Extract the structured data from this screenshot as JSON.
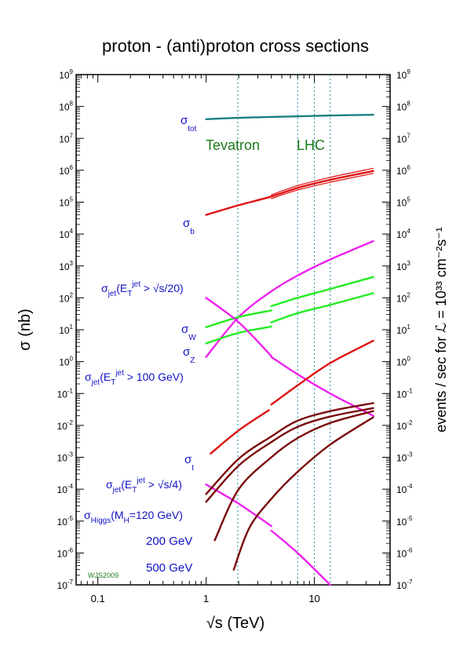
{
  "chart_data": {
    "type": "line",
    "title": "proton - (anti)proton cross sections",
    "xlabel": "√s (TeV)",
    "ylabel_left": "σ (nb)",
    "ylabel_right": "events / sec for ℒ = 10³³ cm⁻²s⁻¹",
    "x_scale": "log",
    "y_scale": "log",
    "xlim": [
      0.063,
      50
    ],
    "ylim": [
      1e-07,
      1000000000.0
    ],
    "x_ticks": [
      {
        "label": "0.1",
        "value": 0.1
      },
      {
        "label": "1",
        "value": 1
      },
      {
        "label": "10",
        "value": 10
      }
    ],
    "y_ticks_left": [
      {
        "base": "10",
        "exp": "9",
        "value": 1000000000.0
      },
      {
        "base": "10",
        "exp": "8",
        "value": 100000000.0
      },
      {
        "base": "10",
        "exp": "7",
        "value": 10000000.0
      },
      {
        "base": "10",
        "exp": "6",
        "value": 1000000.0
      },
      {
        "base": "10",
        "exp": "5",
        "value": 100000.0
      },
      {
        "base": "10",
        "exp": "4",
        "value": 10000.0
      },
      {
        "base": "10",
        "exp": "3",
        "value": 1000.0
      },
      {
        "base": "10",
        "exp": "2",
        "value": 100.0
      },
      {
        "base": "10",
        "exp": "1",
        "value": 10.0
      },
      {
        "base": "10",
        "exp": "0",
        "value": 1.0
      },
      {
        "base": "10",
        "exp": "-1",
        "value": 0.1
      },
      {
        "base": "10",
        "exp": "-2",
        "value": 0.01
      },
      {
        "base": "10",
        "exp": "-3",
        "value": 0.001
      },
      {
        "base": "10",
        "exp": "-4",
        "value": 0.0001
      },
      {
        "base": "10",
        "exp": "-5",
        "value": 1e-05
      },
      {
        "base": "10",
        "exp": "-6",
        "value": 1e-06
      },
      {
        "base": "10",
        "exp": "-7",
        "value": 1e-07
      }
    ],
    "y_ticks_right": [
      {
        "base": "10",
        "exp": "9",
        "value": 1000000000.0
      },
      {
        "base": "10",
        "exp": "8",
        "value": 100000000.0
      },
      {
        "base": "10",
        "exp": "7",
        "value": 10000000.0
      },
      {
        "base": "10",
        "exp": "6",
        "value": 1000000.0
      },
      {
        "base": "10",
        "exp": "5",
        "value": 100000.0
      },
      {
        "base": "10",
        "exp": "4",
        "value": 10000.0
      },
      {
        "base": "10",
        "exp": "3",
        "value": 1000.0
      },
      {
        "base": "10",
        "exp": "2",
        "value": 100.0
      },
      {
        "base": "10",
        "exp": "1",
        "value": 10.0
      },
      {
        "base": "10",
        "exp": "0",
        "value": 1.0
      },
      {
        "base": "10",
        "exp": "-1",
        "value": 0.1
      },
      {
        "base": "10",
        "exp": "-2",
        "value": 0.01
      },
      {
        "base": "10",
        "exp": "-3",
        "value": 0.001
      },
      {
        "base": "10",
        "exp": "-4",
        "value": 0.0001
      },
      {
        "base": "10",
        "exp": "-5",
        "value": 1e-05
      },
      {
        "base": "10",
        "exp": "-6",
        "value": 1e-06
      },
      {
        "base": "10",
        "exp": "-7",
        "value": 1e-07
      }
    ],
    "vlines": [
      {
        "x": 1.96,
        "label": "Tevatron"
      },
      {
        "x": 7,
        "label": ""
      },
      {
        "x": 10,
        "label": ""
      },
      {
        "x": 14,
        "label": "LHC"
      }
    ],
    "collider_labels": {
      "tevatron": "Tevatron",
      "lhc": "LHC"
    },
    "grid": false,
    "colors": {
      "tot": "#1b7f7f",
      "bottom": "#e01010",
      "jet": "#ee22ee",
      "wz": "#22ee22",
      "top": "#e01010",
      "higgs": "#7a0a0a",
      "vline": "#2a8aa0",
      "label": "#1010c8",
      "collider": "#1a7a1a"
    },
    "series": [
      {
        "key": "tot",
        "color_key": "tot",
        "segments": [
          [
            [
              1.0,
              40000000.0
            ],
            [
              2.0,
              44000000.0
            ],
            [
              7.0,
              49000000.0
            ],
            [
              14.0,
              52000000.0
            ],
            [
              35.0,
              55000000.0
            ]
          ]
        ]
      },
      {
        "key": "b",
        "color_key": "bottom",
        "segments": [
          [
            [
              1.0,
              40000.0
            ],
            [
              2.0,
              80000.0
            ],
            [
              4.0,
              150000.0
            ],
            [
              7.0,
              280000.0
            ],
            [
              14.0,
              500000.0
            ],
            [
              35.0,
              950000.0
            ]
          ]
        ]
      },
      {
        "key": "b_upper",
        "color_key": "bottom",
        "segments": [
          [
            [
              4.0,
              170000.0
            ],
            [
              7.0,
              330000.0
            ],
            [
              14.0,
              600000.0
            ],
            [
              35.0,
              1150000.0
            ]
          ]
        ]
      },
      {
        "key": "b_lower",
        "color_key": "bottom",
        "segments": [
          [
            [
              4.0,
              130000.0
            ],
            [
              7.0,
              240000.0
            ],
            [
              14.0,
              420000.0
            ],
            [
              35.0,
              800000.0
            ]
          ]
        ]
      },
      {
        "key": "jet_s20",
        "color_key": "jet",
        "segments": [
          [
            [
              1.0,
              1.4
            ],
            [
              2.0,
              25
            ],
            [
              4.0,
              160
            ],
            [
              7.0,
              500
            ],
            [
              14.0,
              1600
            ],
            [
              35.0,
              6000
            ]
          ]
        ]
      },
      {
        "key": "W",
        "color_key": "wz",
        "segments": [
          [
            [
              1.0,
              12
            ],
            [
              2.0,
              25
            ],
            [
              4.0,
              40
            ]
          ],
          [
            [
              4.0,
              55
            ],
            [
              7.0,
              100
            ],
            [
              14.0,
              190
            ],
            [
              35.0,
              450
            ]
          ]
        ]
      },
      {
        "key": "Z",
        "color_key": "wz",
        "segments": [
          [
            [
              1.0,
              3.7
            ],
            [
              2.0,
              8
            ],
            [
              4.0,
              12.5
            ]
          ],
          [
            [
              4.0,
              17
            ],
            [
              7.0,
              33
            ],
            [
              14.0,
              60
            ],
            [
              35.0,
              140
            ]
          ]
        ]
      },
      {
        "key": "jet_100",
        "color_key": "jet",
        "segments": [
          [
            [
              1.0,
              100
            ],
            [
              2.0,
              17
            ],
            [
              4.0,
              1.5
            ]
          ],
          [
            [
              4.0,
              1.4
            ],
            [
              7.0,
              0.4
            ],
            [
              14.0,
              0.1
            ],
            [
              35.0,
              0.02
            ]
          ]
        ]
      },
      {
        "key": "t",
        "color_key": "top",
        "segments": [
          [
            [
              1.1,
              0.0013
            ],
            [
              2.0,
              0.007
            ],
            [
              3.8,
              0.03
            ]
          ],
          [
            [
              4.0,
              0.045
            ],
            [
              7.0,
              0.18
            ],
            [
              14.0,
              0.9
            ],
            [
              35.0,
              4.5
            ]
          ]
        ]
      },
      {
        "key": "jet_s4",
        "color_key": "jet",
        "segments": [
          [
            [
              1.0,
              0.00014
            ],
            [
              2.0,
              3.5e-05
            ],
            [
              4.0,
              7e-06
            ]
          ],
          [
            [
              4.0,
              5e-06
            ],
            [
              7.0,
              1e-06
            ],
            [
              14.0,
              1e-07
            ]
          ]
        ]
      },
      {
        "key": "higgs_120",
        "color_key": "higgs",
        "segments": [
          [
            [
              1.0,
              7e-05
            ],
            [
              2.0,
              0.0009
            ],
            [
              4.0,
              0.0045
            ],
            [
              7.0,
              0.014
            ],
            [
              14.0,
              0.028
            ],
            [
              35.0,
              0.05
            ]
          ]
        ]
      },
      {
        "key": "higgs_120b",
        "color_key": "higgs",
        "segments": [
          [
            [
              1.0,
              4e-05
            ],
            [
              2.0,
              0.00055
            ],
            [
              4.0,
              0.003
            ],
            [
              7.0,
              0.009
            ],
            [
              14.0,
              0.019
            ],
            [
              35.0,
              0.035
            ]
          ]
        ]
      },
      {
        "key": "higgs_200",
        "color_key": "higgs",
        "segments": [
          [
            [
              1.2,
              2.5e-06
            ],
            [
              2.0,
              0.0001
            ],
            [
              4.0,
              0.001
            ],
            [
              7.0,
              0.004
            ],
            [
              14.0,
              0.012
            ],
            [
              35.0,
              0.028
            ]
          ]
        ]
      },
      {
        "key": "higgs_500",
        "color_key": "higgs",
        "segments": [
          [
            [
              1.8,
              3e-07
            ],
            [
              2.5,
              6e-06
            ],
            [
              4.0,
              5e-05
            ],
            [
              7.0,
              0.00035
            ],
            [
              14.0,
              0.0025
            ],
            [
              35.0,
              0.018
            ]
          ]
        ]
      }
    ],
    "labels": {
      "tot_sym": "σ",
      "tot_sub": "tot",
      "b_sym": "σ",
      "b_sub": "b",
      "jet_s20_sym": "σ",
      "jet_s20_sub": "jet",
      "jet_s20_mid": "(E",
      "jet_s20_subT": "T",
      "jet_s20_sup": "jet",
      "jet_s20_tail": " > √s/20)",
      "W_sym": "σ",
      "W_sub": "W",
      "Z_sym": "σ",
      "Z_sub": "Z",
      "jet_100_sym": "σ",
      "jet_100_sub": "jet",
      "jet_100_mid": "(E",
      "jet_100_subT": "T",
      "jet_100_sup": "jet",
      "jet_100_tail": " > 100 GeV)",
      "t_sym": "σ",
      "t_sub": "t",
      "jet_s4_sym": "σ",
      "jet_s4_sub": "jet",
      "jet_s4_mid": "(E",
      "jet_s4_subT": "T",
      "jet_s4_sup": "jet",
      "jet_s4_tail": " > √s/4)",
      "higgs_sym": "σ",
      "higgs_sub": "Higgs",
      "higgs_mid": "(M",
      "higgs_subH": "H",
      "higgs_tail": "=120 GeV)",
      "higgs_200": "200 GeV",
      "higgs_500": "500 GeV"
    },
    "credit": "WJS2009"
  }
}
